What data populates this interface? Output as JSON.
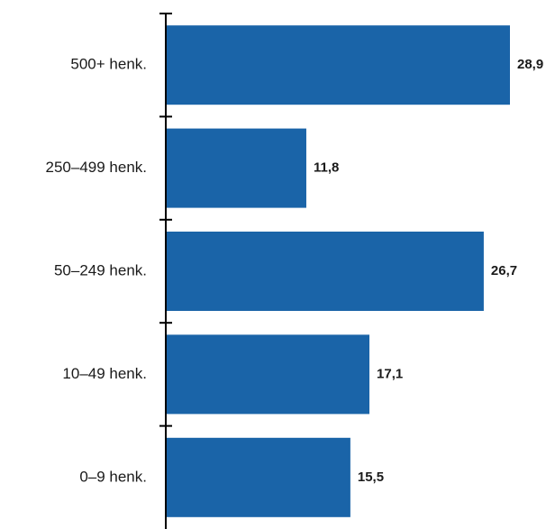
{
  "chart_data": {
    "type": "bar",
    "orientation": "horizontal",
    "categories": [
      "500+ henk.",
      "250–499 henk.",
      "50–249 henk.",
      "10–49 henk.",
      "0–9 henk."
    ],
    "values": [
      28.9,
      11.8,
      26.7,
      17.1,
      15.5
    ],
    "value_labels": [
      "28,9",
      "11,8",
      "26,7",
      "17,1",
      "15,5"
    ],
    "title": "",
    "xlabel": "",
    "ylabel": "",
    "xlim": [
      0,
      30.3
    ],
    "grid": false,
    "legend": "none",
    "bar_color": "#1a64a8"
  }
}
